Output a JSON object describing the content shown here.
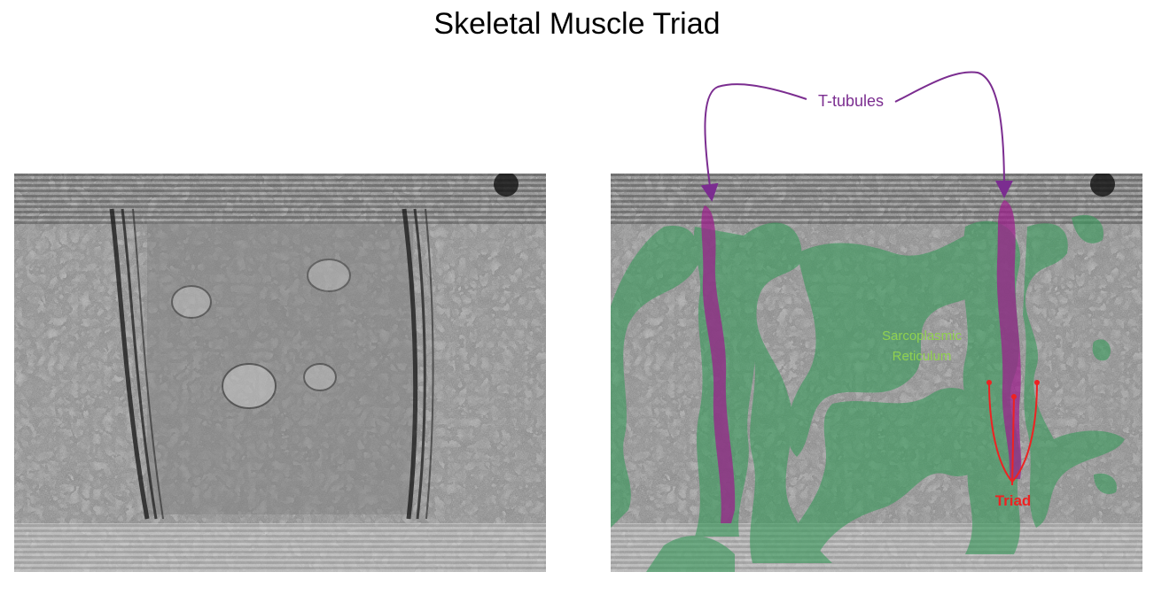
{
  "title": "Skeletal Muscle Triad",
  "panels": {
    "left": {
      "name": "unlabeled-micrograph"
    },
    "right": {
      "name": "labeled-micrograph"
    }
  },
  "labels": {
    "t_tubules": "T-tubules",
    "sarcoplasmic_reticulum_line1": "Sarcoplasmic",
    "sarcoplasmic_reticulum_line2": "Reticulum",
    "triad": "Triad"
  },
  "colors": {
    "t_tubule": "#9c1d8c",
    "t_tubule_label": "#7b2d90",
    "sarcoplasmic_reticulum": "#3a9a5c",
    "sr_label": "#8fd14f",
    "triad": "#ee2222"
  }
}
